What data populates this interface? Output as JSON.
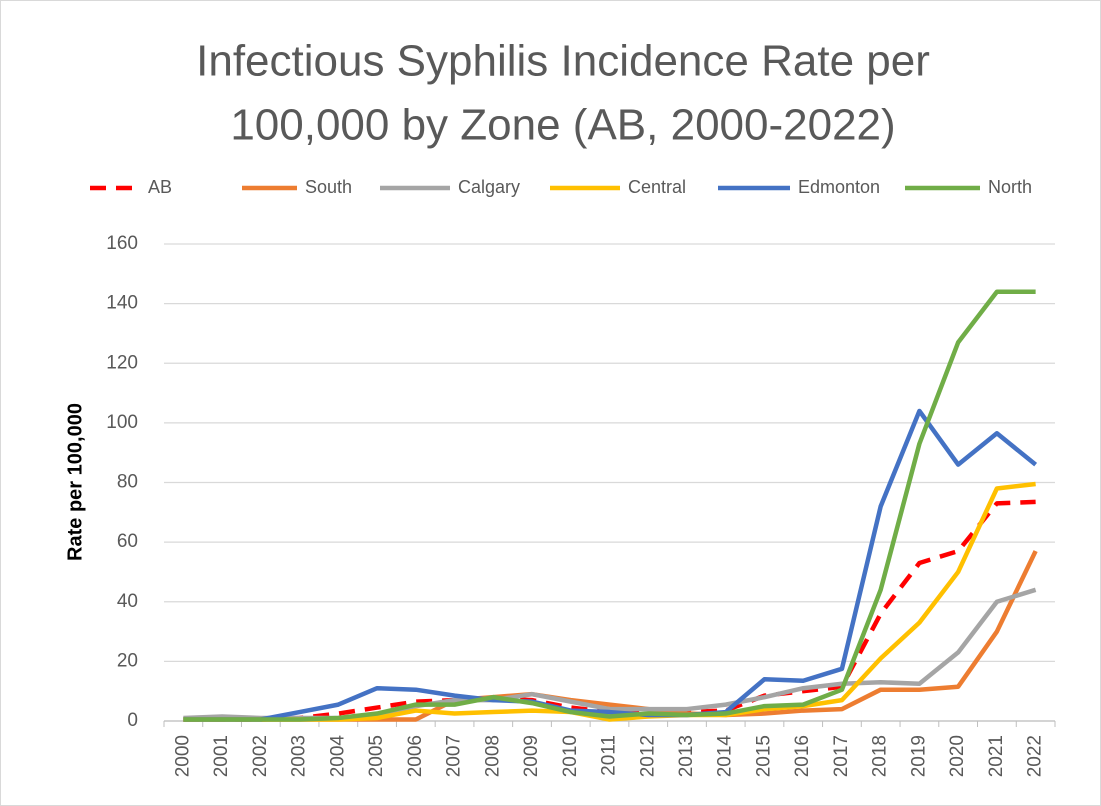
{
  "chart_data": {
    "type": "line",
    "title": [
      "Infectious Syphilis Incidence Rate per",
      "100,000 by Zone (AB, 2000-2022)"
    ],
    "y_label": "Rate per 100,000",
    "categories": [
      "2000",
      "2001",
      "2002",
      "2003",
      "2004",
      "2005",
      "2006",
      "2007",
      "2008",
      "2009",
      "2010",
      "2011",
      "2012",
      "2013",
      "2014",
      "2015",
      "2016",
      "2017",
      "2018",
      "2019",
      "2020",
      "2021",
      "2022"
    ],
    "ylim": [
      0,
      160
    ],
    "yticks": [
      0,
      20,
      40,
      60,
      80,
      100,
      120,
      140,
      160
    ],
    "grid": true,
    "legend": "top",
    "series": [
      {
        "name": "AB",
        "color": "#ff0000",
        "dashed": true,
        "values": [
          0.5,
          0.5,
          0.5,
          1,
          2.5,
          4.5,
          6.5,
          7,
          7.5,
          7,
          4.5,
          3,
          3,
          3,
          3.5,
          8.5,
          10,
          11.5,
          36,
          53,
          57,
          73,
          73.5
        ]
      },
      {
        "name": "South",
        "color": "#ed7d31",
        "values": [
          0.5,
          0.5,
          0.5,
          0.5,
          0.5,
          0.5,
          0.5,
          7,
          8,
          9,
          7,
          5.5,
          4,
          2.5,
          2,
          2.5,
          3.5,
          4,
          10.5,
          10.5,
          11.5,
          30,
          57
        ]
      },
      {
        "name": "Calgary",
        "color": "#a5a5a5",
        "values": [
          1,
          1.5,
          1,
          1,
          1,
          2,
          5,
          7,
          7,
          9,
          6.5,
          4,
          4,
          4,
          5.5,
          8,
          11,
          12.5,
          13,
          12.5,
          23,
          40,
          44
        ]
      },
      {
        "name": "Central",
        "color": "#ffc000",
        "values": [
          0.5,
          0.5,
          0.5,
          0.5,
          0.5,
          1,
          3.5,
          2.5,
          3,
          3.5,
          3,
          0.5,
          1.5,
          2,
          2,
          4,
          5,
          7,
          21,
          33,
          50,
          78,
          79.5
        ]
      },
      {
        "name": "Edmonton",
        "color": "#4472c4",
        "values": [
          0.5,
          0.5,
          0.5,
          3,
          5.5,
          11,
          10.5,
          8.5,
          7,
          6.5,
          3.5,
          3,
          2,
          2,
          3,
          14,
          13.5,
          17.5,
          72,
          104,
          86,
          96.5,
          86
        ]
      },
      {
        "name": "North",
        "color": "#70ad47",
        "values": [
          0.5,
          0.5,
          0.5,
          0.5,
          1,
          2.5,
          5.5,
          5.5,
          8,
          6,
          3,
          1.5,
          2.5,
          2,
          2.5,
          5,
          5.5,
          10.5,
          44,
          93,
          127,
          144,
          144
        ]
      }
    ]
  }
}
